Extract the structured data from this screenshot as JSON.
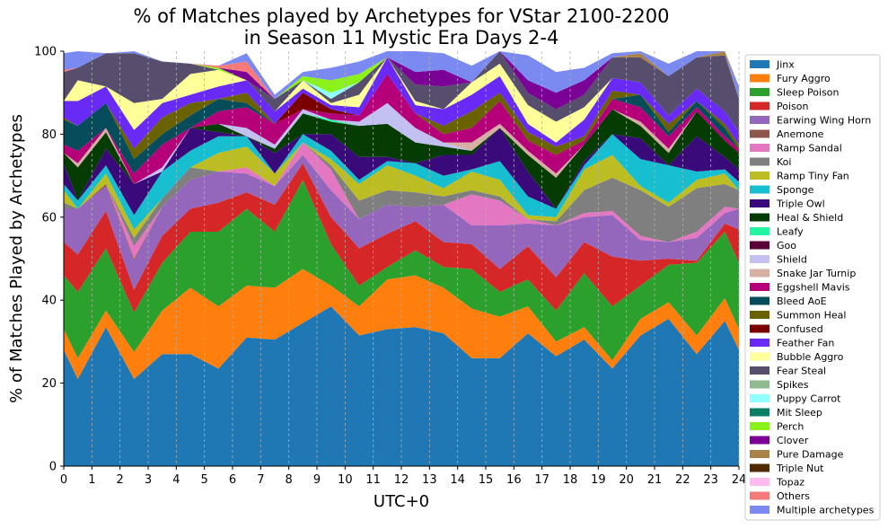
{
  "chart_data": {
    "type": "area",
    "stacked": true,
    "title_line1": "% of Matches played by Archetypes for VStar 2100-2200",
    "title_line2": "in Season 11 Mystic Era Days 2-4",
    "xlabel": "UTC+0",
    "ylabel": "% of Matches Played by Archetypes",
    "xlim": [
      0,
      24
    ],
    "ylim": [
      0,
      100
    ],
    "x_ticks": [
      "0",
      "1",
      "2",
      "3",
      "4",
      "5",
      "6",
      "7",
      "8",
      "9",
      "10",
      "11",
      "12",
      "13",
      "14",
      "15",
      "16",
      "17",
      "18",
      "19",
      "20",
      "21",
      "22",
      "23",
      "24"
    ],
    "y_ticks": [
      "0",
      "20",
      "40",
      "60",
      "80",
      "100"
    ],
    "vertical_grid": true,
    "legend_position": "outside-right",
    "x": [
      0,
      0.5,
      1.5,
      2.5,
      3.5,
      4.5,
      5.5,
      6.5,
      7.5,
      8.5,
      9.5,
      10.5,
      11.5,
      12.5,
      13.5,
      14.5,
      15.5,
      16.5,
      17.5,
      18.5,
      19.5,
      20.5,
      21.5,
      22.5,
      23.5,
      24
    ],
    "series": [
      {
        "name": "Jinx",
        "color": "#1f77b4",
        "values": [
          28,
          21,
          33.5,
          21,
          27,
          27,
          23.5,
          31,
          30.5,
          34.5,
          38.5,
          31.5,
          33,
          33.5,
          32,
          26,
          26,
          32,
          26.5,
          30.5,
          23.5,
          31.5,
          35.5,
          27,
          35,
          28
        ]
      },
      {
        "name": "Fury Aggro",
        "color": "#ff7f0e",
        "values": [
          5,
          5,
          4,
          6.5,
          10.5,
          16,
          15,
          12.5,
          12.5,
          13,
          5,
          7,
          12,
          12.5,
          11,
          12,
          10,
          6.5,
          3.5,
          3,
          2,
          4,
          4,
          4.5,
          5.5,
          5
        ]
      },
      {
        "name": "Sleep Poison",
        "color": "#2ca02c",
        "values": [
          13,
          16,
          15,
          9.5,
          11.5,
          13.5,
          18,
          18.5,
          13.5,
          21.5,
          10,
          5,
          3,
          6,
          5,
          9.5,
          6,
          6.5,
          7.5,
          13,
          13,
          8,
          9,
          17.5,
          16,
          16
        ]
      },
      {
        "name": "Poison",
        "color": "#d62728",
        "values": [
          8,
          9,
          9,
          5.5,
          6.5,
          5.5,
          7,
          4,
          6.5,
          4,
          6.5,
          9,
          8,
          7,
          6,
          6,
          5.5,
          8,
          8,
          7.5,
          12,
          6,
          1.5,
          0.5,
          2,
          8
        ]
      },
      {
        "name": "Earwing Wing Horn",
        "color": "#9467bd",
        "values": [
          8,
          11,
          6,
          7,
          7,
          7,
          7.5,
          4.5,
          4.5,
          2,
          6.5,
          7,
          7,
          3.5,
          9,
          4.5,
          10.5,
          5.5,
          12.5,
          6,
          10,
          5,
          4,
          5.5,
          2.5,
          5
        ]
      },
      {
        "name": "Anemone",
        "color": "#8c564b",
        "values": [
          0,
          0,
          0.5,
          0.5,
          0,
          0,
          0,
          0,
          0,
          0,
          0,
          0,
          0,
          0,
          0,
          0,
          0,
          0,
          0,
          0,
          0,
          0,
          0,
          0,
          0,
          0
        ]
      },
      {
        "name": "Ramp Sandal",
        "color": "#e377c2",
        "values": [
          0,
          0,
          0,
          3,
          0,
          0,
          0,
          1.5,
          0,
          3,
          5,
          0,
          0,
          0,
          0,
          7.5,
          6,
          1,
          0,
          1,
          1,
          1,
          0,
          1.5,
          1.5,
          0
        ]
      },
      {
        "name": "Koi",
        "color": "#7f7f7f",
        "values": [
          1.5,
          0,
          0,
          2,
          2,
          3,
          0,
          0,
          0,
          0,
          1,
          4.5,
          3.5,
          3.5,
          2,
          1,
          1,
          0,
          1,
          5.5,
          8,
          11,
          8.5,
          10.5,
          5.5,
          4.5
        ]
      },
      {
        "name": "Ramp Tiny Fan",
        "color": "#bcbd22",
        "values": [
          3,
          0,
          2.5,
          2,
          0,
          0,
          4.5,
          5,
          3,
          0,
          1.5,
          4,
          6,
          4,
          2,
          4.5,
          4,
          1,
          1,
          5,
          5.5,
          1,
          1,
          2,
          2.5,
          0
        ]
      },
      {
        "name": "Sponge",
        "color": "#17becf",
        "values": [
          1.5,
          2,
          2,
          3.5,
          6.5,
          4,
          4,
          2.5,
          0,
          2,
          2,
          1,
          1,
          3,
          3,
          0.5,
          4.5,
          4.5,
          2,
          1,
          5,
          6.5,
          9,
          2,
          1,
          2
        ]
      },
      {
        "name": "Triple Owl",
        "color": "#3b0a7a",
        "values": [
          5,
          0,
          4,
          7.5,
          0,
          5.5,
          1,
          0,
          5,
          0,
          4,
          5.5,
          1,
          0,
          5,
          3.5,
          8,
          6,
          0,
          1,
          0,
          5,
          0,
          8.5,
          3,
          3
        ]
      },
      {
        "name": "Heal & Shield",
        "color": "#043c04",
        "values": [
          2.5,
          8,
          4,
          0,
          0,
          0,
          2,
          0,
          1,
          5,
          3,
          7.5,
          8,
          5,
          2,
          1,
          0,
          4,
          7.5,
          4,
          6,
          3,
          3,
          6,
          4,
          4
        ]
      },
      {
        "name": "Leafy",
        "color": "#23f5a3",
        "values": [
          0,
          0,
          0,
          0,
          0,
          0,
          0,
          0,
          0,
          0,
          0.5,
          0,
          0,
          0,
          0,
          0,
          0,
          0,
          0,
          0,
          0,
          0,
          0,
          0,
          0,
          0
        ]
      },
      {
        "name": "Goo",
        "color": "#5a0039",
        "values": [
          0,
          0,
          0,
          0,
          0,
          0,
          0,
          0,
          0,
          0,
          0,
          0,
          0,
          0,
          0,
          0,
          0,
          0,
          0,
          0,
          0,
          0,
          0,
          0,
          0,
          0
        ]
      },
      {
        "name": "Shield",
        "color": "#c3c0f2",
        "values": [
          0,
          0,
          0,
          0,
          1,
          0,
          0,
          2,
          1,
          1,
          0,
          1,
          5,
          3.5,
          1,
          0,
          0,
          0,
          0,
          0,
          0,
          0,
          0,
          0,
          0,
          0
        ]
      },
      {
        "name": "Snake Jar Turnip",
        "color": "#d7b0a4",
        "values": [
          0,
          1,
          1,
          0,
          0,
          0,
          0,
          0,
          0,
          0,
          0,
          0,
          0,
          0,
          0,
          2,
          1,
          1,
          1,
          0,
          0,
          1,
          1,
          0,
          0,
          0
        ]
      },
      {
        "name": "Eggshell Mavis",
        "color": "#b5007a",
        "values": [
          2,
          3,
          0,
          2.5,
          5.5,
          0,
          3,
          5,
          5,
          0,
          1.5,
          1.5,
          7,
          3.5,
          2,
          3.5,
          5.5,
          2.5,
          4.5,
          1,
          2.5,
          3.5,
          3,
          1,
          1,
          1
        ]
      },
      {
        "name": "Bleed AoE",
        "color": "#064c5a",
        "values": [
          6,
          6,
          6,
          3.5,
          2.5,
          3,
          3,
          1,
          0,
          0,
          0,
          0,
          0,
          0,
          0,
          0,
          0,
          0,
          0,
          0,
          0,
          3,
          1,
          1.5,
          2,
          0
        ]
      },
      {
        "name": "Summon Heal",
        "color": "#6a6100",
        "values": [
          0.5,
          0,
          0,
          2.5,
          4,
          3,
          0,
          2.5,
          0,
          0,
          0,
          0,
          0,
          0,
          2,
          4,
          2,
          2,
          2,
          1,
          2,
          0,
          2,
          0,
          1,
          1
        ]
      },
      {
        "name": "Confused",
        "color": "#7a0000",
        "values": [
          0,
          0,
          0,
          0,
          0,
          0,
          0,
          0,
          0,
          4,
          1,
          0,
          0,
          0,
          0,
          0,
          0,
          0,
          0,
          0,
          0,
          0,
          0,
          0,
          0,
          0
        ]
      },
      {
        "name": "Feather Fan",
        "color": "#6a2af5",
        "values": [
          4,
          6,
          4,
          4.5,
          3.5,
          2,
          3,
          3,
          3,
          1,
          1,
          2,
          4,
          2,
          4,
          4,
          4,
          2,
          1,
          4,
          3,
          3,
          2,
          3,
          3,
          3
        ]
      },
      {
        "name": "Bubble Aggro",
        "color": "#ffff99",
        "values": [
          0,
          5,
          0,
          6.5,
          1,
          5,
          4,
          0,
          0,
          2,
          0.5,
          3,
          0,
          1,
          0,
          3,
          3,
          4.5,
          5,
          3,
          0,
          0,
          0,
          0,
          0,
          0
        ]
      },
      {
        "name": "Fear Steal",
        "color": "#574e6e",
        "values": [
          7,
          3,
          8,
          12,
          9,
          2.5,
          0,
          0,
          3,
          0,
          1,
          3,
          0,
          4,
          5.5,
          0,
          5,
          3,
          3,
          3,
          5,
          6,
          9.5,
          7.5,
          13.5,
          8
        ]
      },
      {
        "name": "Spikes",
        "color": "#8fb98e",
        "values": [
          0,
          0,
          0,
          0,
          0,
          0,
          0,
          0,
          0,
          0,
          0,
          0,
          0,
          0,
          0,
          0,
          0,
          0,
          0,
          0,
          0,
          0,
          0,
          0,
          0,
          0
        ]
      },
      {
        "name": "Puppy Carrot",
        "color": "#91ffff",
        "values": [
          0,
          0,
          0,
          0,
          0,
          0,
          0,
          0,
          0,
          0,
          1.5,
          0,
          0,
          0,
          0,
          0,
          0,
          0,
          0,
          0,
          0,
          0,
          0,
          0,
          0,
          0
        ]
      },
      {
        "name": "Mit Sleep",
        "color": "#0a7e63",
        "values": [
          0,
          0,
          0,
          0,
          0,
          0,
          0,
          0,
          0,
          0,
          0,
          0,
          0,
          0,
          0,
          0,
          0,
          0,
          0,
          0,
          0,
          0,
          0,
          0,
          0,
          0
        ]
      },
      {
        "name": "Perch",
        "color": "#8af21a",
        "values": [
          0,
          0,
          0,
          0,
          0,
          0,
          0.5,
          0,
          0,
          1,
          3,
          2,
          0,
          0,
          0,
          0,
          0,
          0,
          0,
          0,
          0,
          0,
          0,
          0,
          0,
          0
        ]
      },
      {
        "name": "Clover",
        "color": "#7a0096",
        "values": [
          0,
          0,
          0,
          0,
          0,
          0,
          0,
          2,
          0,
          0,
          0,
          0,
          0,
          3,
          4,
          0,
          0,
          3,
          4,
          3.5,
          0,
          0,
          0,
          0,
          0,
          0
        ]
      },
      {
        "name": "Pure Damage",
        "color": "#a98248",
        "values": [
          0,
          0,
          0,
          0,
          0,
          0,
          0,
          0,
          0,
          0,
          0,
          0,
          0,
          0,
          0,
          0,
          0,
          0,
          0,
          0,
          0,
          1,
          0,
          0,
          1,
          0
        ]
      },
      {
        "name": "Triple Nut",
        "color": "#4f2a00",
        "values": [
          0,
          0,
          0,
          0,
          0,
          0,
          0,
          0,
          0,
          0,
          0,
          0,
          0,
          0,
          0,
          0,
          0,
          0,
          0,
          0,
          0,
          0,
          0,
          0,
          0,
          0
        ]
      },
      {
        "name": "Topaz",
        "color": "#ffbbee",
        "values": [
          0,
          0,
          0,
          0,
          0,
          0,
          0,
          0,
          0,
          0,
          0,
          0,
          0,
          0,
          0,
          0,
          0,
          0,
          0,
          0,
          0,
          0,
          0,
          0,
          0,
          0
        ]
      },
      {
        "name": "Others",
        "color": "#f77a7a",
        "values": [
          0.5,
          0,
          0,
          0,
          0,
          0,
          0.5,
          2.5,
          0,
          0,
          0,
          0,
          0,
          0,
          0,
          0,
          0,
          0,
          0,
          0,
          0,
          0,
          0,
          0,
          0.5,
          0
        ]
      },
      {
        "name": "Multiple archetypes",
        "color": "#7b8af0",
        "values": [
          4,
          5,
          0,
          2,
          0,
          0,
          0,
          2,
          1,
          1,
          3,
          3,
          2,
          5,
          4,
          4,
          3,
          6,
          5,
          3,
          1,
          4,
          3,
          3,
          3,
          3
        ]
      }
    ]
  }
}
